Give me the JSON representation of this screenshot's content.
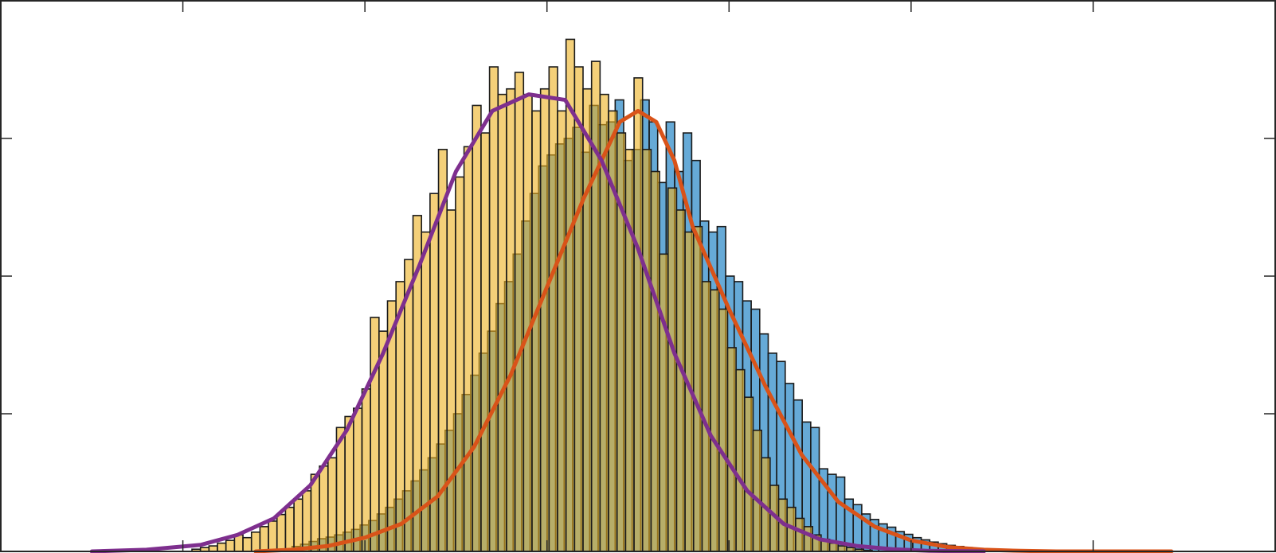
{
  "chart_data": {
    "type": "bar",
    "title": "",
    "xlabel": "",
    "ylabel": "",
    "xlim": [
      -5,
      2
    ],
    "ylim": [
      0,
      1.0
    ],
    "bin_width": 0.0467,
    "grid": false,
    "legend": "none",
    "x_ticks": [
      -4,
      -3,
      -2,
      -1,
      0,
      1
    ],
    "y_ticks": [
      0,
      0.25,
      0.5,
      0.75,
      1.0
    ],
    "series": [
      {
        "type": "histogram",
        "face_color": "#0072BD",
        "face_alpha": 0.6,
        "start": -3.4,
        "values": [
          0.009,
          0.013,
          0.018,
          0.023,
          0.026,
          0.03,
          0.035,
          0.04,
          0.048,
          0.056,
          0.068,
          0.08,
          0.095,
          0.11,
          0.128,
          0.148,
          0.17,
          0.195,
          0.22,
          0.25,
          0.285,
          0.32,
          0.36,
          0.4,
          0.45,
          0.49,
          0.54,
          0.6,
          0.65,
          0.7,
          0.72,
          0.74,
          0.75,
          0.77,
          0.725,
          0.81,
          0.775,
          0.78,
          0.82,
          0.71,
          0.73,
          0.82,
          0.78,
          0.67,
          0.78,
          0.69,
          0.76,
          0.71,
          0.6,
          0.58,
          0.59,
          0.5,
          0.49,
          0.455,
          0.44,
          0.395,
          0.36,
          0.345,
          0.305,
          0.275,
          0.235,
          0.225,
          0.15,
          0.14,
          0.135,
          0.095,
          0.085,
          0.068,
          0.058,
          0.05,
          0.044,
          0.036,
          0.031,
          0.025,
          0.021,
          0.017,
          0.014,
          0.011,
          0.009,
          0.007,
          0.005,
          0.004,
          0.003,
          0.002,
          0.0015,
          0.001
        ]
      },
      {
        "type": "histogram",
        "face_color": "#EDB120",
        "face_alpha": 0.6,
        "start": -3.95,
        "values": [
          0.004,
          0.007,
          0.01,
          0.015,
          0.02,
          0.03,
          0.025,
          0.035,
          0.045,
          0.055,
          0.067,
          0.08,
          0.095,
          0.11,
          0.14,
          0.155,
          0.17,
          0.225,
          0.245,
          0.26,
          0.295,
          0.425,
          0.4,
          0.455,
          0.49,
          0.53,
          0.61,
          0.58,
          0.65,
          0.73,
          0.62,
          0.68,
          0.735,
          0.81,
          0.76,
          0.88,
          0.83,
          0.84,
          0.87,
          0.83,
          0.8,
          0.84,
          0.88,
          0.8,
          0.93,
          0.88,
          0.84,
          0.89,
          0.83,
          0.8,
          0.76,
          0.73,
          0.86,
          0.73,
          0.69,
          0.54,
          0.66,
          0.62,
          0.58,
          0.59,
          0.49,
          0.475,
          0.44,
          0.37,
          0.33,
          0.28,
          0.22,
          0.17,
          0.12,
          0.095,
          0.08,
          0.06,
          0.045,
          0.03,
          0.022,
          0.015,
          0.01,
          0.007,
          0.004,
          0.002
        ]
      }
    ],
    "curves": [
      {
        "color": "#D95319",
        "x": [
          -3.6,
          -3.4,
          -3.2,
          -3.0,
          -2.8,
          -2.6,
          -2.4,
          -2.2,
          -2.0,
          -1.8,
          -1.6,
          -1.5,
          -1.4,
          -1.3,
          -1.2,
          -1.0,
          -0.8,
          -0.6,
          -0.4,
          -0.2,
          0.0,
          0.2,
          0.4,
          0.6,
          0.8,
          1.0,
          1.2,
          1.43
        ],
        "y": [
          0.0,
          0.003,
          0.01,
          0.025,
          0.05,
          0.1,
          0.19,
          0.32,
          0.48,
          0.64,
          0.78,
          0.8,
          0.78,
          0.71,
          0.59,
          0.44,
          0.3,
          0.175,
          0.09,
          0.045,
          0.02,
          0.008,
          0.003,
          0.001,
          0.0,
          0.0,
          0.0,
          0.0
        ]
      },
      {
        "color": "#7E2F8E",
        "x": [
          -4.5,
          -4.2,
          -3.9,
          -3.7,
          -3.5,
          -3.3,
          -3.1,
          -2.9,
          -2.7,
          -2.5,
          -2.3,
          -2.1,
          -1.9,
          -1.7,
          -1.5,
          -1.3,
          -1.1,
          -0.9,
          -0.7,
          -0.5,
          -0.3,
          -0.1,
          0.1,
          0.4
        ],
        "y": [
          0.0,
          0.003,
          0.012,
          0.03,
          0.06,
          0.12,
          0.22,
          0.36,
          0.52,
          0.69,
          0.8,
          0.83,
          0.82,
          0.71,
          0.55,
          0.36,
          0.21,
          0.11,
          0.05,
          0.022,
          0.01,
          0.004,
          0.001,
          0.0
        ]
      }
    ]
  }
}
